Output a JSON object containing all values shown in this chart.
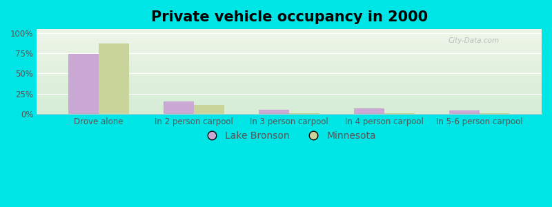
{
  "title": "Private vehicle occupancy in 2000",
  "categories": [
    "Drove alone",
    "In 2 person carpool",
    "In 3 person carpool",
    "In 4 person carpool",
    "In 5-6 person carpool"
  ],
  "lake_bronson": [
    74.0,
    15.0,
    5.0,
    7.0,
    4.0
  ],
  "minnesota": [
    87.0,
    11.0,
    1.0,
    1.0,
    1.0
  ],
  "lake_bronson_color": "#c9a8d4",
  "minnesota_color": "#c8d49a",
  "background_outer": "#00e5e5",
  "bg_top_color": "#d6edd6",
  "bg_bottom_color": "#eef5e8",
  "yticks": [
    0,
    25,
    50,
    75,
    100
  ],
  "ytick_labels": [
    "0%",
    "25%",
    "50%",
    "75%",
    "100%"
  ],
  "legend_lake_bronson": "Lake Bronson",
  "legend_minnesota": "Minnesota",
  "bar_width": 0.32,
  "title_fontsize": 15,
  "tick_fontsize": 8.5,
  "legend_fontsize": 10,
  "axis_text_color": "#555555",
  "watermark": "City-Data.com"
}
